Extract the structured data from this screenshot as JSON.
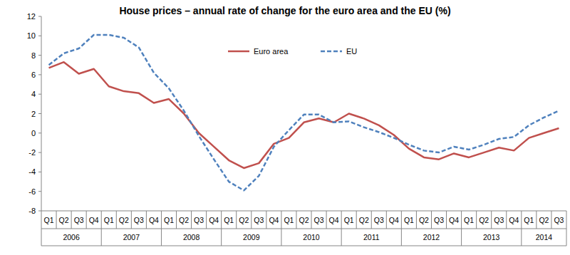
{
  "chart_data": {
    "type": "line",
    "title": "House prices – annual rate of change for the euro area and the EU (%)",
    "categories": [
      "Q1",
      "Q2",
      "Q3",
      "Q4",
      "Q1",
      "Q2",
      "Q3",
      "Q4",
      "Q1",
      "Q2",
      "Q3",
      "Q4",
      "Q1",
      "Q2",
      "Q3",
      "Q4",
      "Q1",
      "Q2",
      "Q3",
      "Q4",
      "Q1",
      "Q2",
      "Q3",
      "Q4",
      "Q1",
      "Q2",
      "Q3",
      "Q4",
      "Q1",
      "Q2",
      "Q3",
      "Q4",
      "Q1",
      "Q2",
      "Q3"
    ],
    "category_groups": [
      "2006",
      "2007",
      "2008",
      "2009",
      "2010",
      "2011",
      "2012",
      "2013",
      "2014"
    ],
    "series": [
      {
        "name": "Euro area",
        "color": "#c0504d",
        "line_style": "solid",
        "values": [
          6.7,
          7.3,
          6.1,
          6.6,
          4.8,
          4.3,
          4.1,
          3.1,
          3.5,
          2.0,
          0.0,
          -1.4,
          -2.8,
          -3.6,
          -3.1,
          -1.1,
          -0.5,
          1.1,
          1.5,
          1.1,
          2.0,
          1.5,
          0.8,
          -0.2,
          -1.6,
          -2.5,
          -2.7,
          -2.1,
          -2.5,
          -2.0,
          -1.5,
          -1.8,
          -0.5,
          0.0,
          0.5
        ]
      },
      {
        "name": "EU",
        "color": "#4f81bd",
        "line_style": "dashed",
        "values": [
          7.0,
          8.2,
          8.7,
          10.1,
          10.1,
          9.8,
          8.8,
          6.2,
          4.6,
          2.3,
          -0.3,
          -2.7,
          -5.0,
          -5.9,
          -4.4,
          -1.4,
          0.3,
          1.9,
          1.9,
          1.1,
          1.2,
          0.6,
          0.1,
          -0.5,
          -1.2,
          -1.8,
          -2.0,
          -1.4,
          -1.7,
          -1.2,
          -0.6,
          -0.4,
          0.8,
          1.6,
          2.3
        ]
      }
    ],
    "ylim": [
      -8,
      12
    ],
    "yticks": [
      -8,
      -6,
      -4,
      -2,
      0,
      2,
      4,
      6,
      8,
      10,
      12
    ],
    "grid": false,
    "legend": "top"
  }
}
